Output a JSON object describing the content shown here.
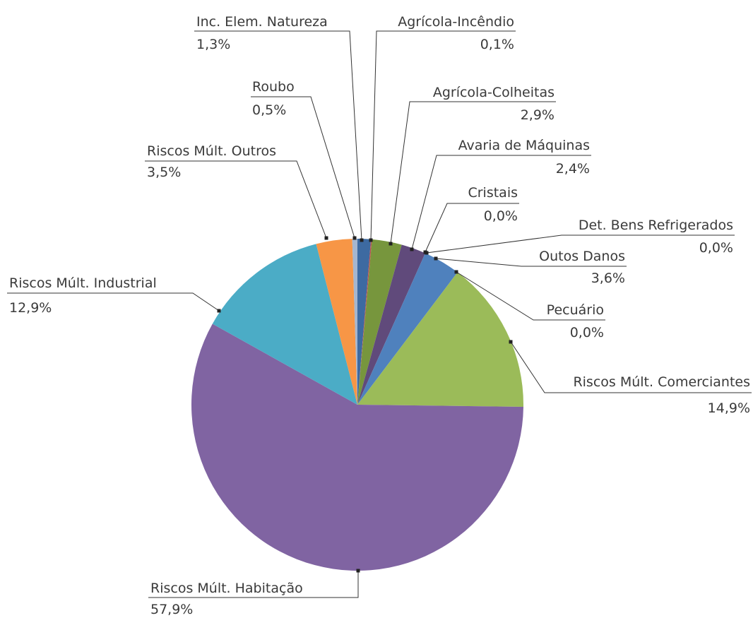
{
  "chart_data": {
    "type": "pie",
    "categories": [
      "Inc. Elem. Natureza",
      "Agrícola-Incêndio",
      "Agrícola-Colheitas",
      "Avaria de Máquinas",
      "Cristais",
      "Det. Bens Refrigerados",
      "Outos Danos",
      "Pecuário",
      "Riscos Múlt. Comerciantes",
      "Riscos Múlt. Habitação",
      "Riscos Múlt. Industrial",
      "Riscos Múlt. Outros",
      "Roubo"
    ],
    "values": [
      1.3,
      0.1,
      2.9,
      2.4,
      0.0,
      0.0,
      3.6,
      0.0,
      14.9,
      57.9,
      12.9,
      3.5,
      0.5
    ],
    "value_labels": [
      "1,3%",
      "0,1%",
      "2,9%",
      "2,4%",
      "0,0%",
      "0,0%",
      "3,6%",
      "0,0%",
      "14,9%",
      "57,9%",
      "12,9%",
      "3,5%",
      "0,5%"
    ],
    "colors": [
      "#3d6aa1",
      "#c0504d",
      "#77963d",
      "#604a7b",
      "#4bacc6",
      "#f79646",
      "#4f81bd",
      "#c0504d",
      "#9bbb59",
      "#8064a2",
      "#4bacc6",
      "#f79646",
      "#a5b6cf"
    ]
  }
}
